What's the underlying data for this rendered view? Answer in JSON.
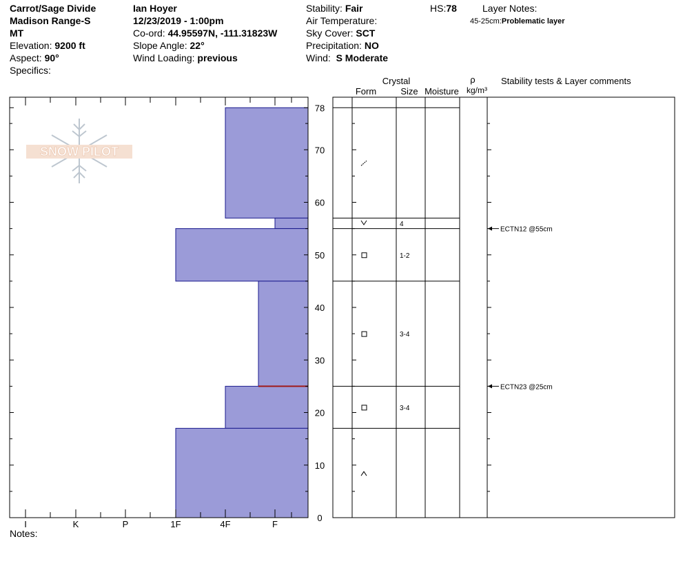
{
  "header": {
    "col1": {
      "location": "Carrot/Sage Divide",
      "range": "Madison Range-S",
      "state": "MT",
      "elevation_label": "Elevation:",
      "elevation_value": "9200 ft",
      "aspect_label": "Aspect:",
      "aspect_value": "90°",
      "specifics_label": "Specifics:"
    },
    "col2": {
      "observer": "Ian Hoyer",
      "datetime": "12/23/2019 - 1:00pm",
      "coord_label": "Co-ord:",
      "coord_value": "44.95597N, -111.31823W",
      "slope_label": "Slope Angle:",
      "slope_value": "22°",
      "wind_loading_label": "Wind Loading:",
      "wind_loading_value": "previous"
    },
    "col3": {
      "stability_label": "Stability:",
      "stability_value": "Fair",
      "air_temp_label": "Air Temperature:",
      "sky_label": "Sky Cover:",
      "sky_value": "SCT",
      "precip_label": "Precipitation:",
      "precip_value": "NO",
      "wind_label": "Wind:",
      "wind_value": "S Moderate"
    },
    "hs_label": "HS:",
    "hs_value": "78",
    "layer_notes_label": "Layer Notes:",
    "layer_notes_range": "45-25cm:",
    "layer_notes_text": "Problematic layer"
  },
  "logo_text": "SNOW PILOT",
  "columns": {
    "crystal": "Crystal",
    "form": "Form",
    "size": "Size",
    "moisture": "Moisture",
    "rho": "ρ",
    "density_unit": "kg/m³",
    "comments": "Stability tests & Layer comments"
  },
  "notes_label": "Notes:",
  "chart_data": {
    "type": "bar",
    "title": "",
    "depth_axis": {
      "min": 0,
      "max": 78,
      "ticks": [
        0,
        10,
        20,
        30,
        40,
        50,
        60,
        70,
        78
      ]
    },
    "hardness_axis": {
      "labels": [
        "I",
        "K",
        "P",
        "1F",
        "4F",
        "F"
      ]
    },
    "hardness_profile": [
      {
        "top": 78,
        "bottom": 57,
        "hardness": "4F"
      },
      {
        "top": 57,
        "bottom": 55,
        "hardness": "F+"
      },
      {
        "top": 55,
        "bottom": 45,
        "hardness": "1F"
      },
      {
        "top": 45,
        "bottom": 25,
        "hardness": "F-"
      },
      {
        "top": 25,
        "bottom": 17,
        "hardness": "4F"
      },
      {
        "top": 17,
        "bottom": 0,
        "hardness": "1F"
      }
    ],
    "layers": [
      {
        "top": 78,
        "bottom": 57,
        "form": "decomposing",
        "size": ""
      },
      {
        "top": 57,
        "bottom": 55,
        "form": "surface-hoar",
        "size": "4"
      },
      {
        "top": 55,
        "bottom": 45,
        "form": "faceted",
        "size": "1-2"
      },
      {
        "top": 45,
        "bottom": 25,
        "form": "faceted",
        "size": "3-4"
      },
      {
        "top": 25,
        "bottom": 17,
        "form": "faceted",
        "size": "3-4"
      },
      {
        "top": 17,
        "bottom": 0,
        "form": "depth-hoar",
        "size": ""
      }
    ],
    "tests": [
      {
        "depth": 55,
        "label": "ECTN12 @55cm"
      },
      {
        "depth": 25,
        "label": "ECTN23 @25cm"
      }
    ]
  }
}
